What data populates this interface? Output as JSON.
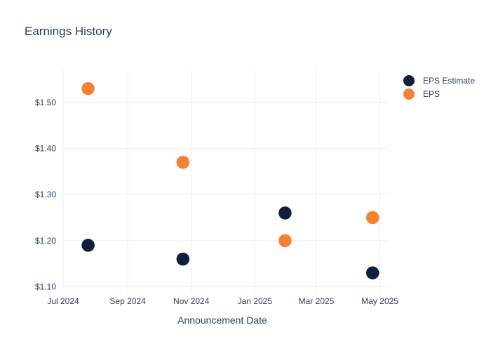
{
  "chart_data": {
    "type": "scatter",
    "title": "Earnings History",
    "xlabel": "Announcement Date",
    "ylabel": "",
    "x_axis": {
      "type": "date",
      "range": [
        "2024-07-01",
        "2025-05-10"
      ],
      "ticks": [
        {
          "value": "2024-07-01",
          "label": "Jul 2024"
        },
        {
          "value": "2024-09-01",
          "label": "Sep 2024"
        },
        {
          "value": "2024-11-01",
          "label": "Nov 2024"
        },
        {
          "value": "2025-01-01",
          "label": "Jan 2025"
        },
        {
          "value": "2025-03-01",
          "label": "Mar 2025"
        },
        {
          "value": "2025-05-01",
          "label": "May 2025"
        }
      ]
    },
    "y_axis": {
      "range": [
        1.09,
        1.57
      ],
      "ticks": [
        {
          "value": 1.1,
          "label": "$1.10"
        },
        {
          "value": 1.2,
          "label": "$1.20"
        },
        {
          "value": 1.3,
          "label": "$1.30"
        },
        {
          "value": 1.4,
          "label": "$1.40"
        },
        {
          "value": 1.5,
          "label": "$1.50"
        }
      ]
    },
    "grid": true,
    "legend_position": "top-right",
    "series": [
      {
        "name": "EPS Estimate",
        "color": "#0f1f3d",
        "points": [
          {
            "x": "2024-07-25",
            "y": 1.19
          },
          {
            "x": "2024-10-24",
            "y": 1.16
          },
          {
            "x": "2025-01-30",
            "y": 1.26
          },
          {
            "x": "2025-04-24",
            "y": 1.13
          }
        ]
      },
      {
        "name": "EPS",
        "color": "#f58132",
        "points": [
          {
            "x": "2024-07-25",
            "y": 1.53
          },
          {
            "x": "2024-10-24",
            "y": 1.37
          },
          {
            "x": "2025-01-30",
            "y": 1.2
          },
          {
            "x": "2025-04-24",
            "y": 1.25
          }
        ]
      }
    ]
  }
}
